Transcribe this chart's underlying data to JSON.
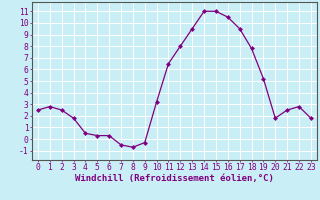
{
  "x": [
    0,
    1,
    2,
    3,
    4,
    5,
    6,
    7,
    8,
    9,
    10,
    11,
    12,
    13,
    14,
    15,
    16,
    17,
    18,
    19,
    20,
    21,
    22,
    23
  ],
  "y": [
    2.5,
    2.8,
    2.5,
    1.8,
    0.5,
    0.3,
    0.3,
    -0.5,
    -0.7,
    -0.3,
    3.2,
    6.5,
    8.0,
    9.5,
    11.0,
    11.0,
    10.5,
    9.5,
    7.8,
    5.2,
    1.8,
    2.5,
    2.8,
    1.8
  ],
  "line_color": "#800080",
  "marker": "D",
  "markersize": 2.0,
  "linewidth": 0.9,
  "xlabel": "Windchill (Refroidissement éolien,°C)",
  "ylabel_ticks": [
    -1,
    0,
    1,
    2,
    3,
    4,
    5,
    6,
    7,
    8,
    9,
    10,
    11
  ],
  "xlim": [
    -0.5,
    23.5
  ],
  "ylim": [
    -1.8,
    11.8
  ],
  "bg_color": "#caeef5",
  "grid_color": "#ffffff",
  "tick_label_color": "#800080",
  "xlabel_color": "#800080",
  "xlabel_fontsize": 6.5,
  "tick_fontsize": 5.8
}
